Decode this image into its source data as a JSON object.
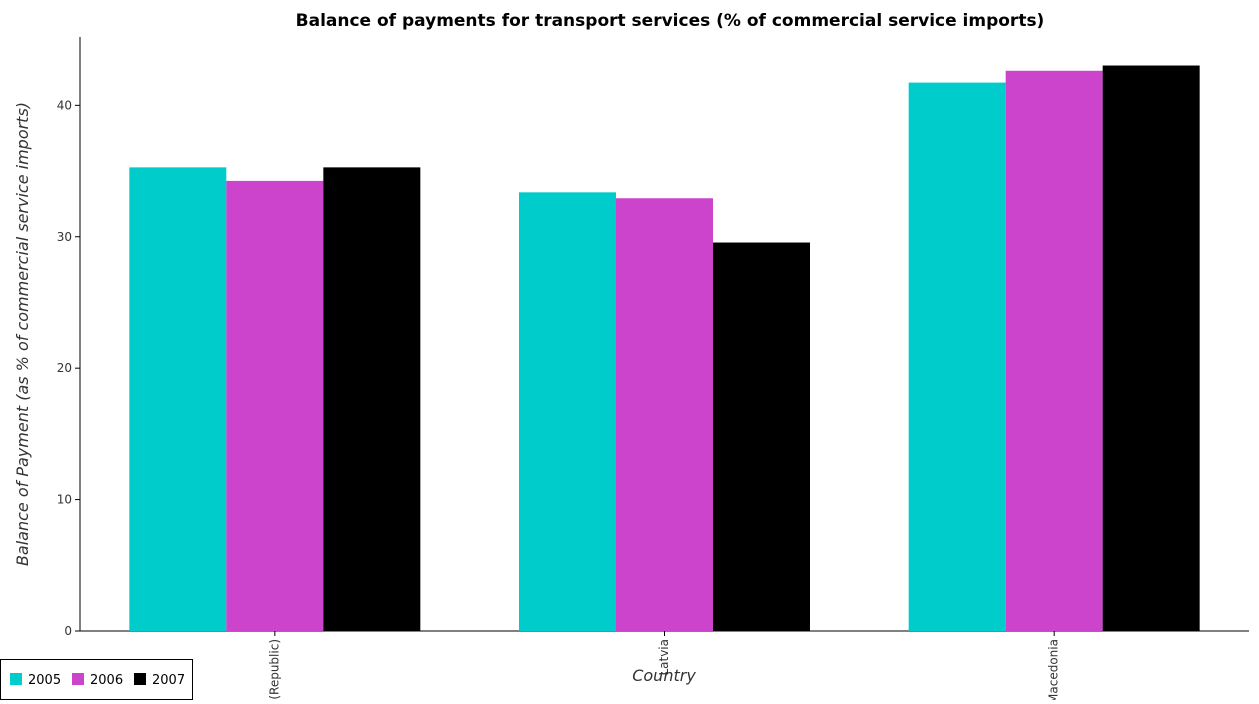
{
  "chart_data": {
    "type": "bar",
    "title": "Balance of payments for transport services (% of commercial service imports)",
    "xlabel": "Country",
    "ylabel": "Balance of Payment (as % of commercial service imports)",
    "categories": [
      "Korea (Republic)",
      "Latvia",
      "Macedonia"
    ],
    "series": [
      {
        "name": "2005",
        "color": "#00cccc",
        "values": [
          35.28,
          33.38,
          41.73
        ]
      },
      {
        "name": "2006",
        "color": "#cc44cc",
        "values": [
          34.25,
          32.93,
          42.63
        ]
      },
      {
        "name": "2007",
        "color": "#000000",
        "values": [
          35.28,
          29.56,
          43.03
        ]
      }
    ],
    "ylim": [
      0,
      45.2
    ],
    "yticks": [
      0,
      10,
      20,
      30,
      40
    ],
    "grid": false,
    "legend_position": "bottom-left"
  }
}
